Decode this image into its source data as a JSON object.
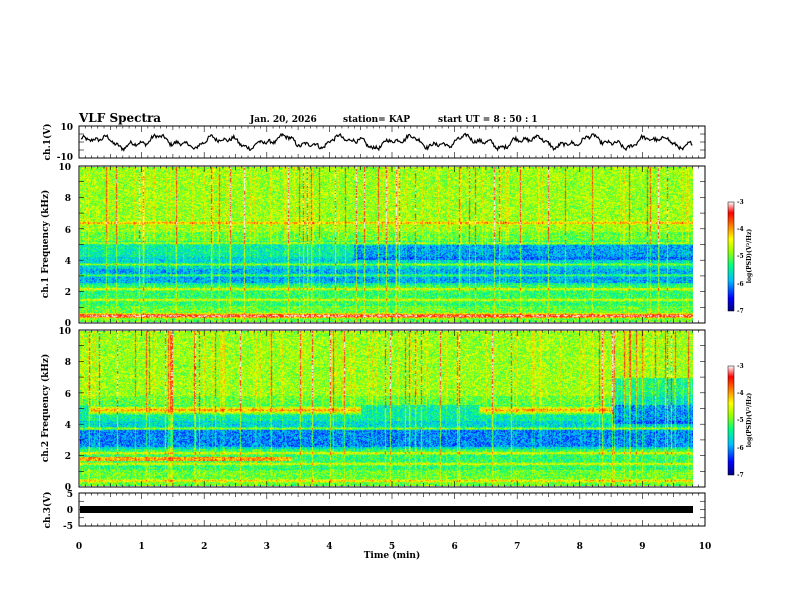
{
  "header": {
    "title": "VLF Spectra",
    "date": "Jan. 20, 2026",
    "station": "station= KAP",
    "start_ut": "start  UT =   8 : 50 : 1"
  },
  "colors": {
    "frame": "#000000",
    "background": "#ffffff",
    "colormap": [
      "#000080",
      "#0000ff",
      "#00bfff",
      "#00ff80",
      "#a0ff00",
      "#ffff00",
      "#ff8000",
      "#ff0000",
      "#ffffff"
    ]
  },
  "chart_data": [
    {
      "type": "line",
      "name": "ch1-waveform",
      "ylabel": "ch.1(V)",
      "ylim": [
        -10,
        10
      ],
      "yticks": [
        "10",
        "-10"
      ],
      "xlim": [
        0,
        10
      ],
      "description_values": {
        "mean": 0,
        "amplitude": 4
      }
    },
    {
      "type": "heatmap",
      "name": "ch1-spectrogram",
      "ylabel": "ch.1 Frequency (kHz)",
      "ylim": [
        0,
        10
      ],
      "yticks": [
        "0",
        "2",
        "4",
        "6",
        "8",
        "10"
      ],
      "xlim": [
        0,
        9.83
      ],
      "bands_khz": [
        0.3,
        1.4,
        2.1,
        3.0,
        3.7,
        5.1,
        6.4
      ],
      "colorbar": {
        "label": "log(PSD)(V²/Hz)",
        "ticks": [
          "-3",
          "-4",
          "-5",
          "-6",
          "-7"
        ],
        "range": [
          -7,
          -3
        ]
      }
    },
    {
      "type": "heatmap",
      "name": "ch2-spectrogram",
      "ylabel": "ch.2 Frequency (kHz)",
      "ylim": [
        0,
        10
      ],
      "yticks": [
        "0",
        "2",
        "4",
        "6",
        "8",
        "10"
      ],
      "xlim": [
        0,
        9.83
      ],
      "strong_band_segments": [
        {
          "start_min": 0.15,
          "end_min": 4.5,
          "freq_khz": 4.9
        },
        {
          "start_min": 6.4,
          "end_min": 8.55,
          "freq_khz": 4.9
        }
      ],
      "colorbar": {
        "label": "log(PSD)(V²/Hz)",
        "ticks": [
          "-3",
          "-4",
          "-5",
          "-6",
          "-7"
        ],
        "range": [
          -7,
          -3
        ]
      }
    },
    {
      "type": "line",
      "name": "ch3-waveform",
      "ylabel": "ch.3(V)",
      "ylim": [
        -5,
        5
      ],
      "yticks": [
        "5",
        "0",
        "-5"
      ],
      "xlim": [
        0,
        10
      ],
      "level_v": 0
    }
  ],
  "xaxis": {
    "label": "Time  (min)",
    "ticks": [
      "0",
      "1",
      "2",
      "3",
      "4",
      "5",
      "6",
      "7",
      "8",
      "9",
      "10"
    ]
  }
}
